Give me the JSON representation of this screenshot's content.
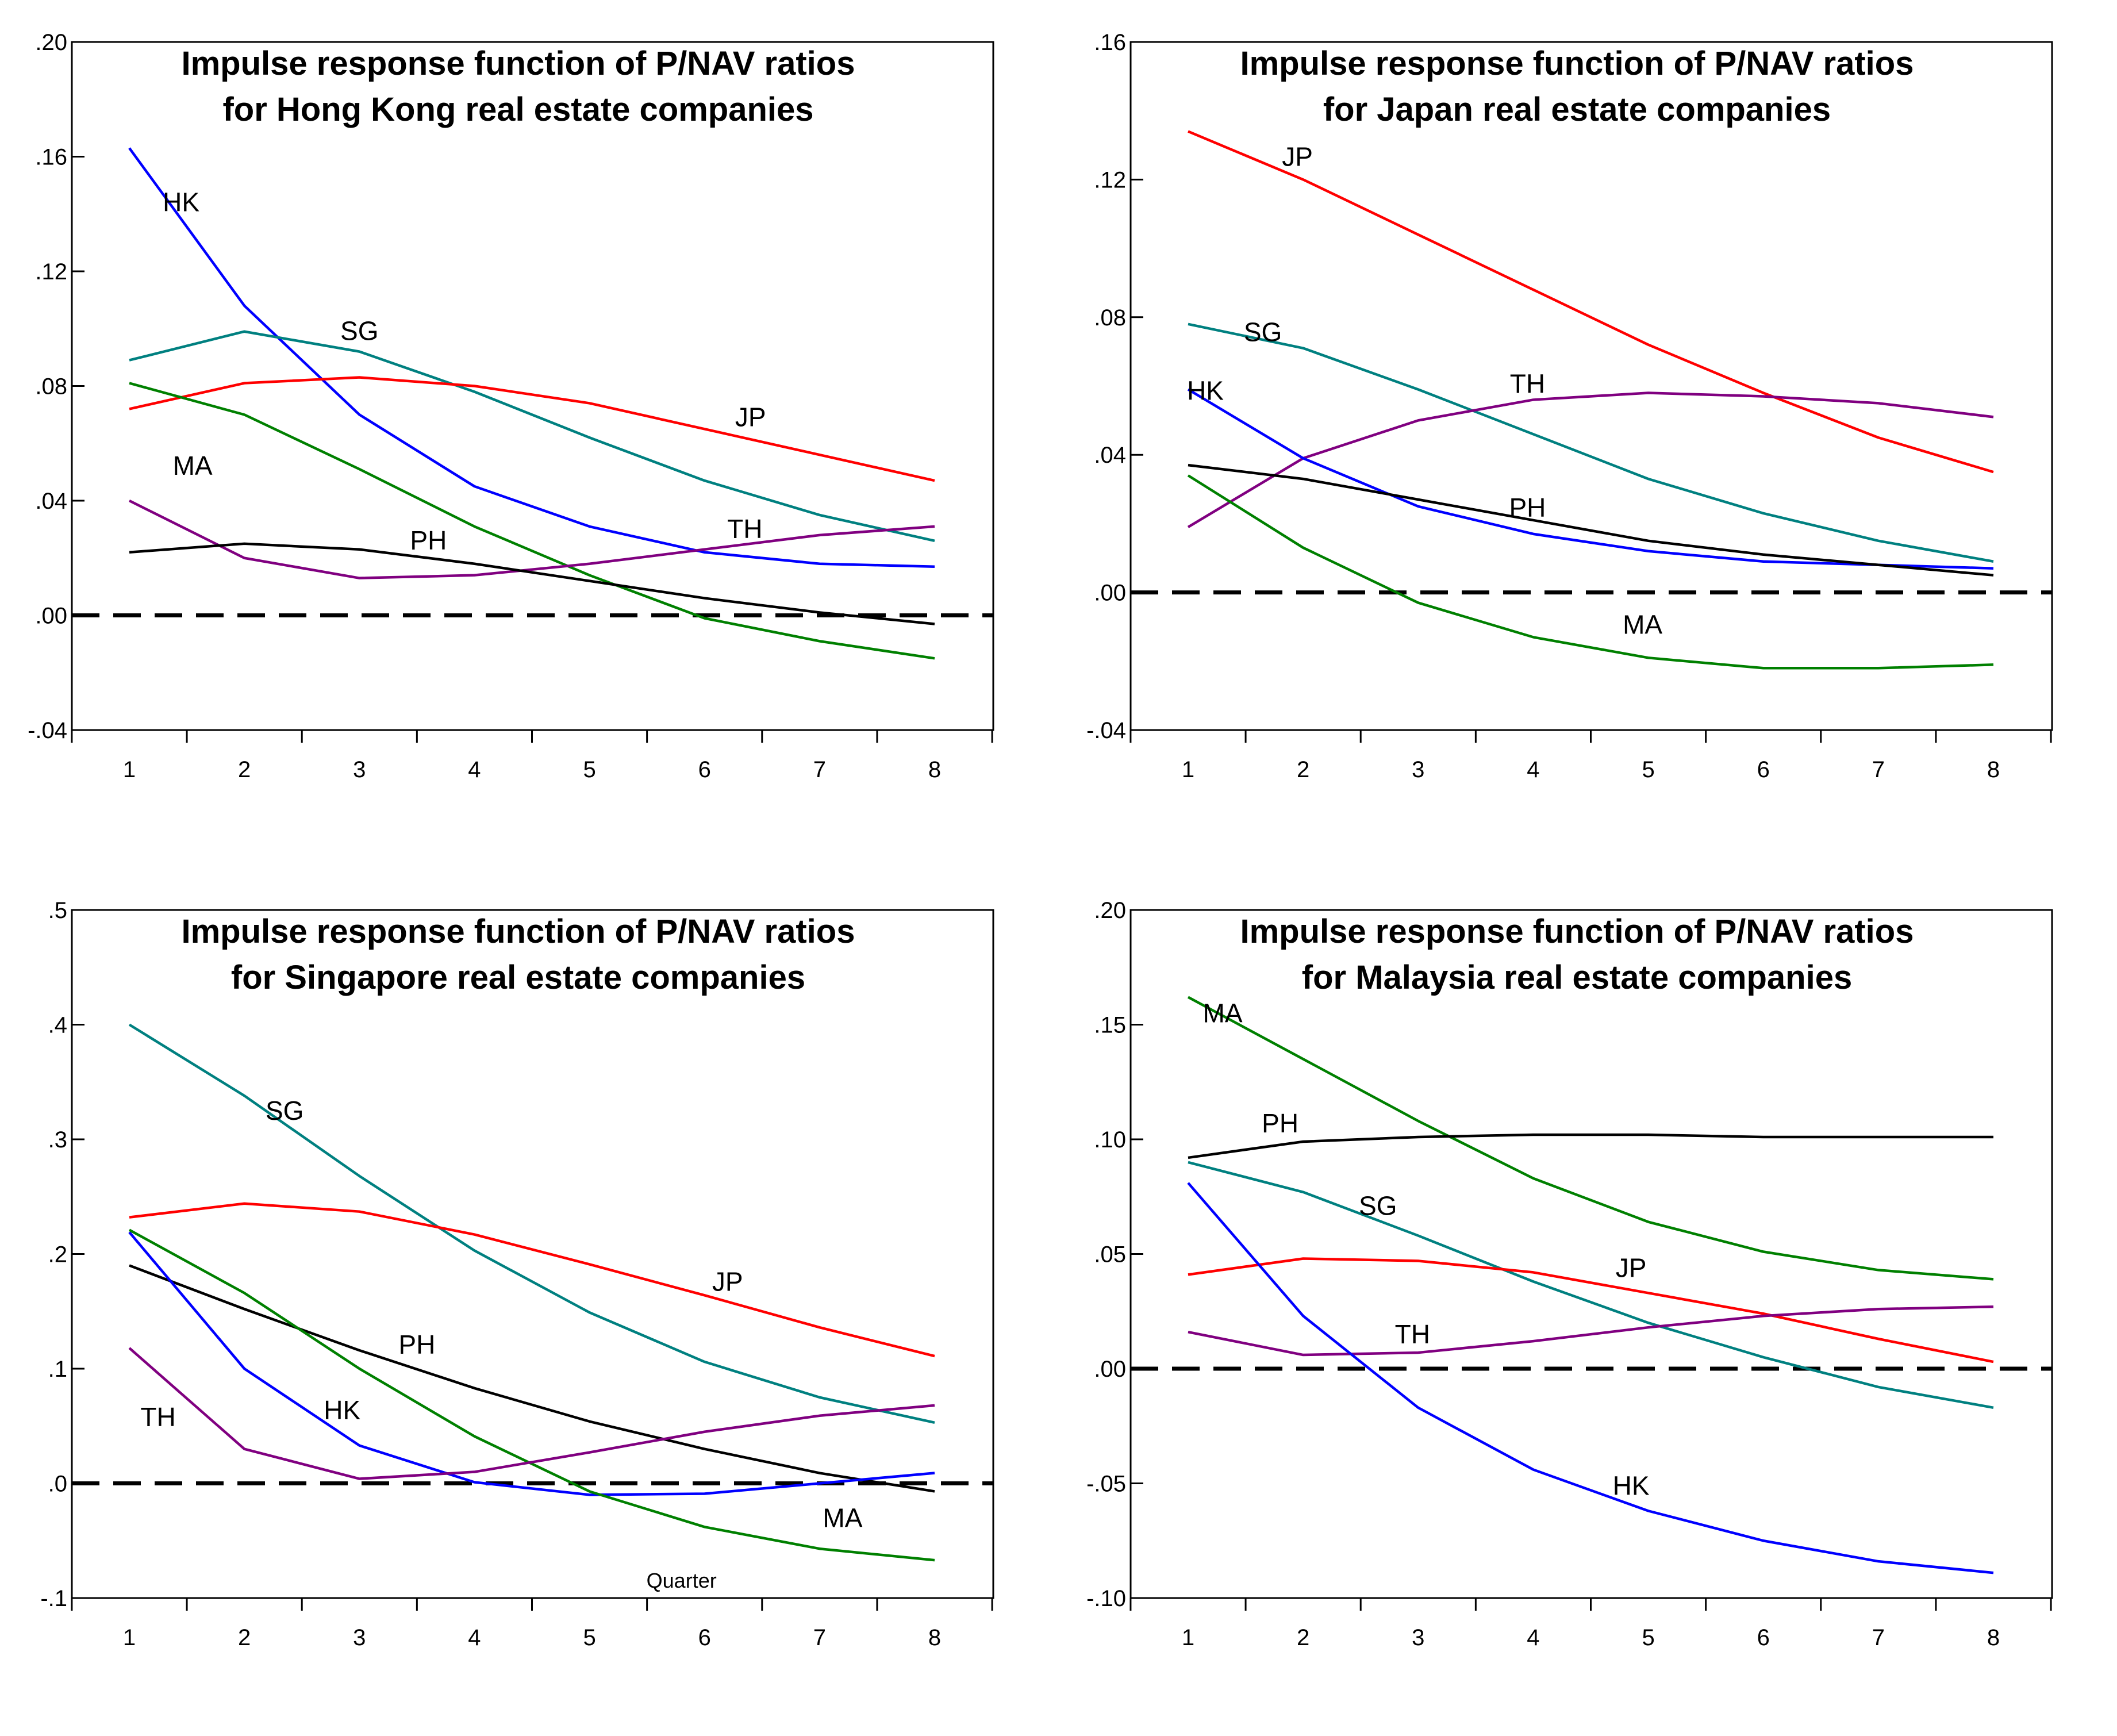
{
  "chart_data": [
    {
      "type": "line",
      "title": [
        "Impulse response function of P/NAV ratios",
        "for Hong Kong real estate companies"
      ],
      "x": [
        1,
        2,
        3,
        4,
        5,
        6,
        7,
        8
      ],
      "x_ticks": [
        "1",
        "2",
        "3",
        "4",
        "5",
        "6",
        "7",
        "8"
      ],
      "ylim": [
        -0.04,
        0.2
      ],
      "y_ticks": [
        {
          "value": -0.04,
          "label": "-.04"
        },
        {
          "value": 0.0,
          "label": ".00"
        },
        {
          "value": 0.04,
          "label": ".04"
        },
        {
          "value": 0.08,
          "label": ".08"
        },
        {
          "value": 0.12,
          "label": ".12"
        },
        {
          "value": 0.16,
          "label": ".16"
        },
        {
          "value": 0.2,
          "label": ".20"
        }
      ],
      "zero_line": 0.0,
      "note": "",
      "series": [
        {
          "name": "HK",
          "label": "HK",
          "color": "#0000ff",
          "values": [
            0.163,
            0.108,
            0.07,
            0.045,
            0.031,
            0.022,
            0.018,
            0.017
          ],
          "label_at": [
            1.45,
            0.141
          ]
        },
        {
          "name": "SG",
          "label": "SG",
          "color": "#008080",
          "values": [
            0.089,
            0.099,
            0.092,
            0.078,
            0.062,
            0.047,
            0.035,
            0.026
          ],
          "label_at": [
            3.0,
            0.096
          ]
        },
        {
          "name": "JP",
          "label": "JP",
          "color": "#ff0000",
          "values": [
            0.072,
            0.081,
            0.083,
            0.08,
            0.074,
            0.065,
            0.056,
            0.047
          ],
          "label_at": [
            6.4,
            0.066
          ]
        },
        {
          "name": "MA",
          "label": "MA",
          "color": "#008000",
          "values": [
            0.081,
            0.07,
            0.051,
            0.031,
            0.014,
            -0.001,
            -0.009,
            -0.015
          ],
          "label_at": [
            1.55,
            0.049
          ]
        },
        {
          "name": "TH",
          "label": "TH",
          "color": "#800080",
          "values": [
            0.04,
            0.02,
            0.013,
            0.014,
            0.018,
            0.023,
            0.028,
            0.031
          ],
          "label_at": [
            6.35,
            0.027
          ]
        },
        {
          "name": "PH",
          "label": "PH",
          "color": "#000000",
          "values": [
            0.022,
            0.025,
            0.023,
            0.018,
            0.012,
            0.006,
            0.001,
            -0.003
          ],
          "label_at": [
            3.6,
            0.023
          ]
        }
      ]
    },
    {
      "type": "line",
      "title": [
        "Impulse response function of P/NAV ratios",
        "for Japan real estate companies"
      ],
      "x": [
        1,
        2,
        3,
        4,
        5,
        6,
        7,
        8
      ],
      "x_ticks": [
        "1",
        "2",
        "3",
        "4",
        "5",
        "6",
        "7",
        "8"
      ],
      "ylim": [
        -0.04,
        0.16
      ],
      "y_ticks": [
        {
          "value": -0.04,
          "label": "-.04"
        },
        {
          "value": 0.0,
          "label": ".00"
        },
        {
          "value": 0.04,
          "label": ".04"
        },
        {
          "value": 0.08,
          "label": ".08"
        },
        {
          "value": 0.12,
          "label": ".12"
        },
        {
          "value": 0.16,
          "label": ".16"
        }
      ],
      "zero_line": 0.0,
      "note": "",
      "series": [
        {
          "name": "JP",
          "label": "JP",
          "color": "#ff0000",
          "values": [
            0.134,
            0.12,
            0.104,
            0.088,
            0.072,
            0.058,
            0.045,
            0.035
          ],
          "label_at": [
            1.95,
            0.124
          ]
        },
        {
          "name": "SG",
          "label": "SG",
          "color": "#008080",
          "values": [
            0.078,
            0.071,
            0.059,
            0.046,
            0.033,
            0.023,
            0.015,
            0.009
          ],
          "label_at": [
            1.65,
            0.073
          ]
        },
        {
          "name": "TH",
          "label": "TH",
          "color": "#800080",
          "values": [
            0.019,
            0.039,
            0.05,
            0.056,
            0.058,
            0.057,
            0.055,
            0.051
          ],
          "label_at": [
            3.95,
            0.058
          ]
        },
        {
          "name": "HK",
          "label": "HK",
          "color": "#0000ff",
          "values": [
            0.059,
            0.039,
            0.025,
            0.017,
            0.012,
            0.009,
            0.008,
            0.007
          ],
          "label_at": [
            1.15,
            0.056
          ]
        },
        {
          "name": "PH",
          "label": "PH",
          "color": "#000000",
          "values": [
            0.037,
            0.033,
            0.027,
            0.021,
            0.015,
            0.011,
            0.008,
            0.005
          ],
          "label_at": [
            3.95,
            0.022
          ]
        },
        {
          "name": "MA",
          "label": "MA",
          "color": "#008000",
          "values": [
            0.034,
            0.013,
            -0.003,
            -0.013,
            -0.019,
            -0.022,
            -0.022,
            -0.021
          ],
          "label_at": [
            4.95,
            -0.012
          ]
        }
      ]
    },
    {
      "type": "line",
      "title": [
        "Impulse response function of P/NAV ratios",
        "for Singapore real estate companies"
      ],
      "x": [
        1,
        2,
        3,
        4,
        5,
        6,
        7,
        8
      ],
      "x_ticks": [
        "1",
        "2",
        "3",
        "4",
        "5",
        "6",
        "7",
        "8"
      ],
      "ylim": [
        -0.1,
        0.5
      ],
      "y_ticks": [
        {
          "value": -0.1,
          "label": "-.1"
        },
        {
          "value": 0.0,
          "label": ".0"
        },
        {
          "value": 0.1,
          "label": ".1"
        },
        {
          "value": 0.2,
          "label": ".2"
        },
        {
          "value": 0.3,
          "label": ".3"
        },
        {
          "value": 0.4,
          "label": ".4"
        },
        {
          "value": 0.5,
          "label": ".5"
        }
      ],
      "zero_line": 0.0,
      "note": "Quarter",
      "series": [
        {
          "name": "SG",
          "label": "SG",
          "color": "#008080",
          "values": [
            0.4,
            0.338,
            0.268,
            0.203,
            0.149,
            0.106,
            0.075,
            0.053
          ],
          "label_at": [
            2.35,
            0.317
          ]
        },
        {
          "name": "JP",
          "label": "JP",
          "color": "#ff0000",
          "values": [
            0.232,
            0.244,
            0.237,
            0.217,
            0.191,
            0.164,
            0.136,
            0.111
          ],
          "label_at": [
            6.2,
            0.168
          ]
        },
        {
          "name": "PH",
          "label": "PH",
          "color": "#000000",
          "values": [
            0.19,
            0.152,
            0.116,
            0.083,
            0.054,
            0.03,
            0.009,
            -0.007
          ],
          "label_at": [
            3.5,
            0.113
          ]
        },
        {
          "name": "HK",
          "label": "HK",
          "color": "#0000ff",
          "values": [
            0.219,
            0.1,
            0.033,
            0.001,
            -0.01,
            -0.009,
            0.0,
            0.009
          ],
          "label_at": [
            2.85,
            0.056
          ]
        },
        {
          "name": "MA",
          "label": "MA",
          "color": "#008000",
          "values": [
            0.221,
            0.166,
            0.1,
            0.041,
            -0.007,
            -0.038,
            -0.057,
            -0.067
          ],
          "label_at": [
            7.2,
            -0.038
          ]
        },
        {
          "name": "TH",
          "label": "TH",
          "color": "#800080",
          "values": [
            0.118,
            0.03,
            0.004,
            0.01,
            0.027,
            0.045,
            0.059,
            0.068
          ],
          "label_at": [
            1.25,
            0.05
          ]
        }
      ]
    },
    {
      "type": "line",
      "title": [
        "Impulse response function of P/NAV ratios",
        "for Malaysia real estate companies"
      ],
      "x": [
        1,
        2,
        3,
        4,
        5,
        6,
        7,
        8
      ],
      "x_ticks": [
        "1",
        "2",
        "3",
        "4",
        "5",
        "6",
        "7",
        "8"
      ],
      "ylim": [
        -0.1,
        0.2
      ],
      "y_ticks": [
        {
          "value": -0.1,
          "label": "-.10"
        },
        {
          "value": -0.05,
          "label": "-.05"
        },
        {
          "value": 0.0,
          "label": ".00"
        },
        {
          "value": 0.05,
          "label": ".05"
        },
        {
          "value": 0.1,
          "label": ".10"
        },
        {
          "value": 0.15,
          "label": ".15"
        },
        {
          "value": 0.2,
          "label": ".20"
        }
      ],
      "zero_line": 0.0,
      "note": "",
      "series": [
        {
          "name": "MA",
          "label": "MA",
          "color": "#008000",
          "values": [
            0.162,
            0.135,
            0.108,
            0.083,
            0.064,
            0.051,
            0.043,
            0.039
          ],
          "label_at": [
            1.3,
            0.151
          ]
        },
        {
          "name": "PH",
          "label": "PH",
          "color": "#000000",
          "values": [
            0.092,
            0.099,
            0.101,
            0.102,
            0.102,
            0.101,
            0.101,
            0.101
          ],
          "label_at": [
            1.8,
            0.103
          ]
        },
        {
          "name": "SG",
          "label": "SG",
          "color": "#008080",
          "values": [
            0.09,
            0.077,
            0.058,
            0.038,
            0.02,
            0.005,
            -0.008,
            -0.017
          ],
          "label_at": [
            2.65,
            0.067
          ]
        },
        {
          "name": "JP",
          "label": "JP",
          "color": "#ff0000",
          "values": [
            0.041,
            0.048,
            0.047,
            0.042,
            0.033,
            0.024,
            0.013,
            0.003
          ],
          "label_at": [
            4.85,
            0.04
          ]
        },
        {
          "name": "TH",
          "label": "TH",
          "color": "#800080",
          "values": [
            0.016,
            0.006,
            0.007,
            0.012,
            0.018,
            0.023,
            0.026,
            0.027
          ],
          "label_at": [
            2.95,
            0.011
          ]
        },
        {
          "name": "HK",
          "label": "HK",
          "color": "#0000ff",
          "values": [
            0.081,
            0.023,
            -0.017,
            -0.044,
            -0.062,
            -0.075,
            -0.084,
            -0.089
          ],
          "label_at": [
            4.85,
            -0.055
          ]
        }
      ]
    }
  ]
}
